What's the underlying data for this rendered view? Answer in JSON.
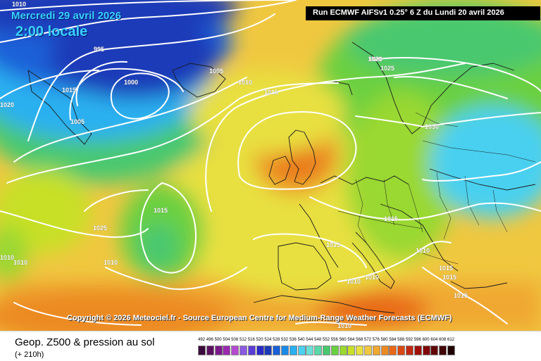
{
  "header": {
    "date_text": "Mercredi 29 avril 2026",
    "time_text": "2:00 locale",
    "run_text": "Run ECMWF AIFSv1 0.25° 6 Z du Lundi 20 avril 2026"
  },
  "copyright": "Copyright © 2026 Meteociel.fr - Source European Centre for Medium-Range Weather Forecasts (ECMWF)",
  "footer": {
    "title": "Geop. Z500 & pression au sol",
    "subtitle": "(+ 210h)"
  },
  "legend": {
    "values": [
      "492",
      "496",
      "500",
      "504",
      "508",
      "512",
      "516",
      "520",
      "524",
      "528",
      "532",
      "536",
      "540",
      "544",
      "548",
      "552",
      "556",
      "560",
      "564",
      "568",
      "572",
      "576",
      "580",
      "584",
      "588",
      "592",
      "596",
      "600",
      "604",
      "608",
      "612"
    ],
    "colors": [
      "#3a0a3a",
      "#5a1060",
      "#7a1a8a",
      "#9a2ab0",
      "#b44ad0",
      "#8a5ae0",
      "#5a3ad8",
      "#2a2ac8",
      "#1a3ab8",
      "#1a60d8",
      "#1a8ae8",
      "#2ab0f0",
      "#4ad0f0",
      "#6ae0d8",
      "#5ad8a8",
      "#4ac870",
      "#6ad040",
      "#9ad830",
      "#c8e028",
      "#e8e040",
      "#f0c840",
      "#f0a830",
      "#ec8a20",
      "#e86818",
      "#d84810",
      "#c02810",
      "#a01008",
      "#800808",
      "#600404",
      "#400202",
      "#200000"
    ]
  },
  "isobars": [
    "1010",
    "995",
    "1015",
    "1000",
    "1005",
    "1020",
    "1010",
    "1015",
    "1020",
    "1025",
    "1005",
    "1030",
    "1015",
    "1025",
    "1020",
    "1010",
    "1015",
    "1010",
    "1010",
    "1015",
    "1010",
    "1010",
    "1015",
    "1015",
    "1010",
    "1015",
    "1010"
  ]
}
